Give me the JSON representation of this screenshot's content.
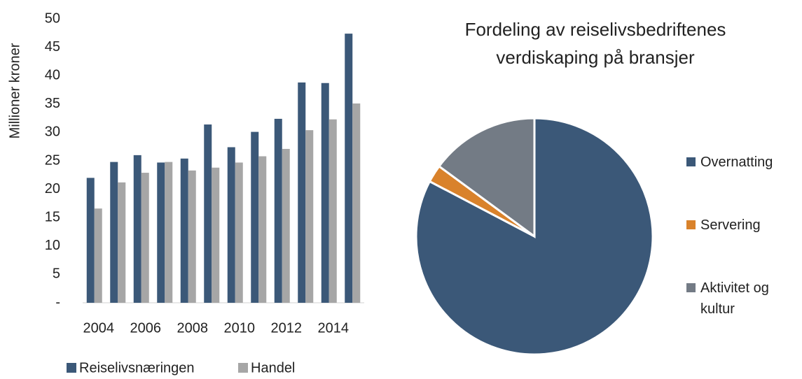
{
  "chart_data": [
    {
      "type": "bar",
      "y_label": "Millioner kroner",
      "categories": [
        "2004",
        null,
        "2006",
        null,
        "2008",
        null,
        "2010",
        null,
        "2012",
        null,
        "2014",
        null
      ],
      "series": [
        {
          "name": "Reiselivsnæringen",
          "color": "#3b5878",
          "values": [
            22,
            24.8,
            26,
            24.7,
            25.4,
            31.4,
            27.4,
            30.1,
            32.4,
            38.8,
            38.7,
            47.4
          ]
        },
        {
          "name": "Handel",
          "color": "#a6a6a6",
          "values": [
            16.6,
            21.2,
            22.9,
            24.8,
            23.3,
            23.8,
            24.7,
            25.8,
            27.1,
            30.4,
            32.3,
            35.1
          ]
        }
      ],
      "ylim": [
        0,
        50
      ],
      "yticks": [
        {
          "value": 0,
          "label": "-"
        },
        5,
        10,
        15,
        20,
        25,
        30,
        35,
        40,
        45,
        50
      ],
      "grid": false
    },
    {
      "type": "pie",
      "title": "Fordeling av reiselivsbedriftenes verdiskaping på bransjer",
      "categories": [
        "Overnatting",
        "Servering",
        "Aktivitet og kultur"
      ],
      "values": [
        82.7,
        2.4,
        14.9
      ],
      "colors": [
        "#3b5878",
        "#d9822b",
        "#737b85"
      ]
    }
  ]
}
